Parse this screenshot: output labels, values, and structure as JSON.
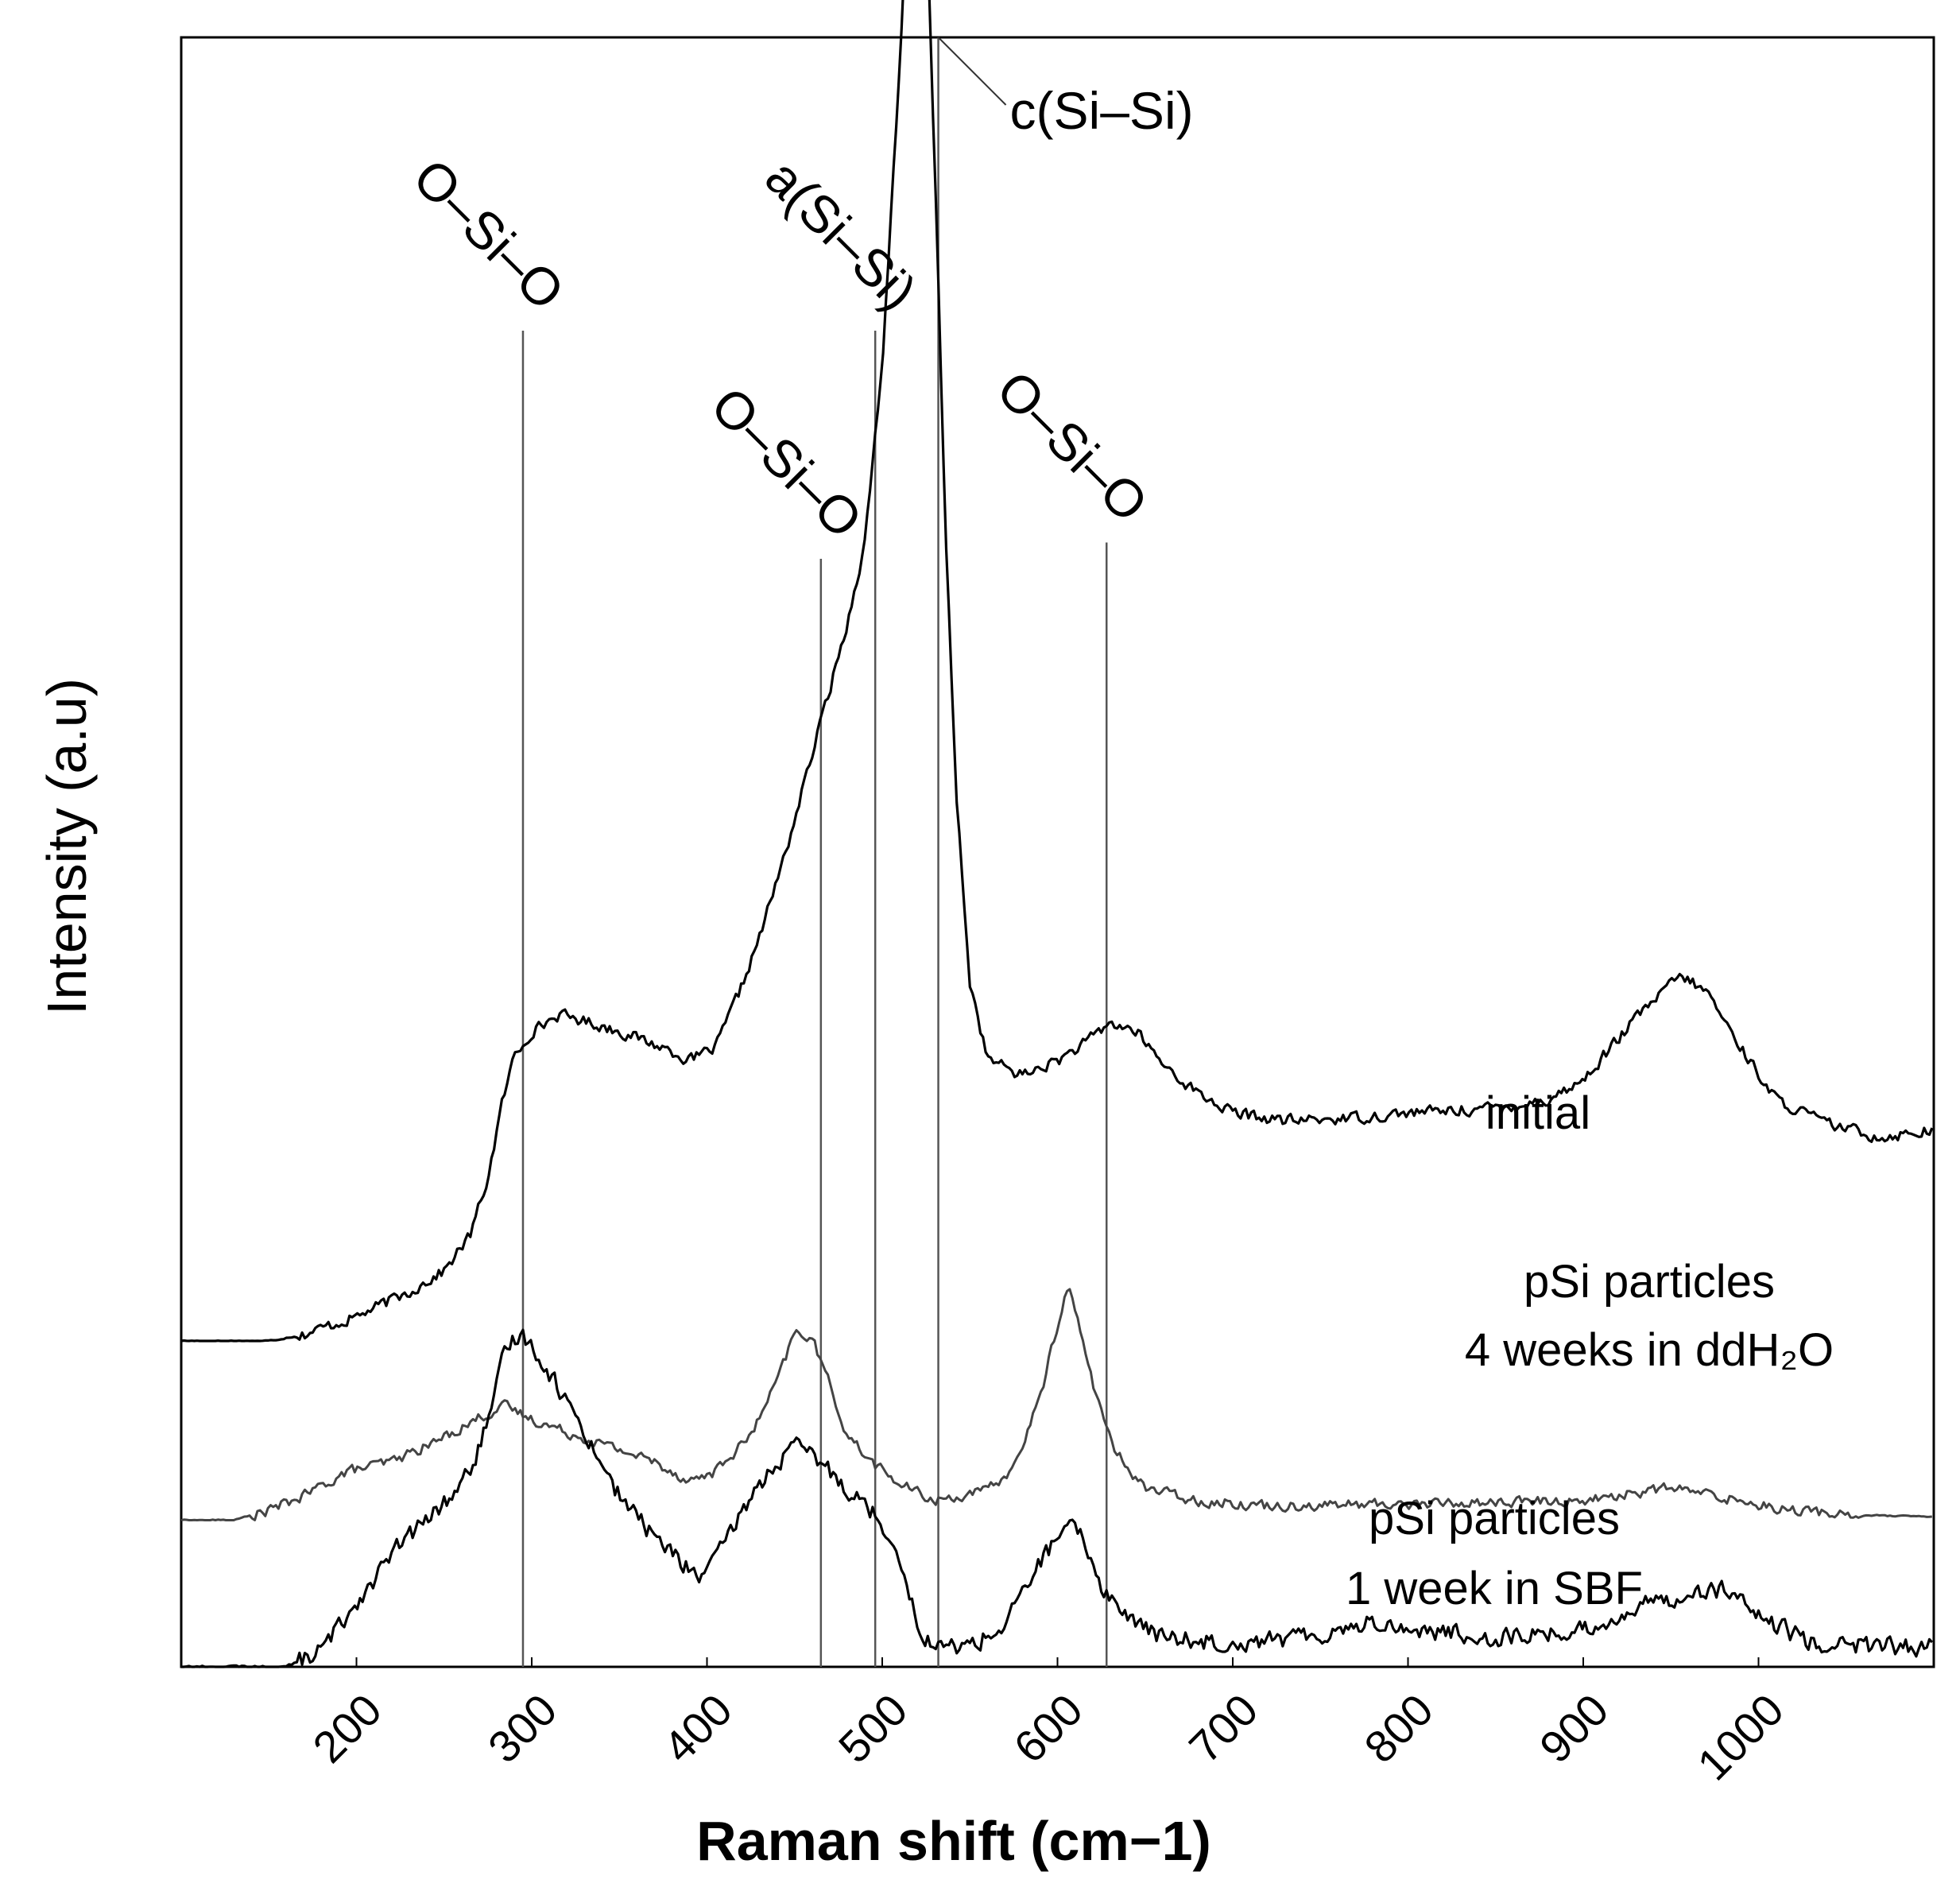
{
  "chart_data": {
    "type": "line",
    "title": "",
    "xlabel": "Raman shift (cm−1)",
    "ylabel": "Intensity (a.u)",
    "xlim": [
      100,
      1100
    ],
    "ylim": [
      0,
      100
    ],
    "xticks": [
      200,
      300,
      400,
      500,
      600,
      700,
      800,
      900,
      1000
    ],
    "grid": false,
    "series": [
      {
        "name": "initial",
        "label_lines": [
          "initial"
        ],
        "baseline": 20,
        "color": "#000000",
        "noise": 0.5,
        "points": [
          [
            100,
            0
          ],
          [
            150,
            0
          ],
          [
            170,
            0.4
          ],
          [
            200,
            1.5
          ],
          [
            230,
            3
          ],
          [
            250,
            4.3
          ],
          [
            265,
            6.5
          ],
          [
            275,
            10
          ],
          [
            283,
            14.5
          ],
          [
            290,
            17.5
          ],
          [
            300,
            19
          ],
          [
            315,
            20
          ],
          [
            325,
            19.8
          ],
          [
            350,
            19
          ],
          [
            380,
            17.8
          ],
          [
            390,
            17.2
          ],
          [
            405,
            18
          ],
          [
            420,
            21.8
          ],
          [
            430,
            24.8
          ],
          [
            445,
            30
          ],
          [
            470,
            40
          ],
          [
            480,
            44
          ],
          [
            490,
            49
          ],
          [
            500,
            60
          ],
          [
            510,
            78
          ],
          [
            515,
            90
          ],
          [
            520,
            95.5
          ],
          [
            525,
            89
          ],
          [
            530,
            72
          ],
          [
            536,
            50
          ],
          [
            542,
            34
          ],
          [
            550,
            22
          ],
          [
            560,
            17.3
          ],
          [
            580,
            16.3
          ],
          [
            600,
            17.2
          ],
          [
            615,
            18.2
          ],
          [
            630,
            19.5
          ],
          [
            645,
            19
          ],
          [
            660,
            17
          ],
          [
            680,
            15.2
          ],
          [
            700,
            14
          ],
          [
            730,
            13.5
          ],
          [
            770,
            13.7
          ],
          [
            800,
            14
          ],
          [
            850,
            14.3
          ],
          [
            880,
            14.8
          ],
          [
            900,
            16
          ],
          [
            930,
            19.8
          ],
          [
            955,
            22.4
          ],
          [
            970,
            21.5
          ],
          [
            990,
            18
          ],
          [
            1010,
            14.8
          ],
          [
            1040,
            13.3
          ],
          [
            1070,
            12.5
          ],
          [
            1100,
            13
          ]
        ]
      },
      {
        "name": "pSi particles 4 weeks in ddH2O",
        "label_lines": [
          "pSi particles",
          "4 weeks in ddH₂O"
        ],
        "baseline": 9,
        "color": "#444444",
        "noise": 0.45,
        "points": [
          [
            100,
            0
          ],
          [
            130,
            0
          ],
          [
            150,
            0.6
          ],
          [
            170,
            1.5
          ],
          [
            195,
            3
          ],
          [
            220,
            3.6
          ],
          [
            245,
            4.8
          ],
          [
            270,
            6.3
          ],
          [
            285,
            7
          ],
          [
            300,
            6.2
          ],
          [
            320,
            5.4
          ],
          [
            340,
            4.7
          ],
          [
            370,
            3.6
          ],
          [
            390,
            2.4
          ],
          [
            405,
            3
          ],
          [
            425,
            5.2
          ],
          [
            440,
            8.5
          ],
          [
            450,
            11.5
          ],
          [
            460,
            11.2
          ],
          [
            470,
            8.3
          ],
          [
            480,
            5.2
          ],
          [
            495,
            3.5
          ],
          [
            510,
            2.2
          ],
          [
            530,
            1.2
          ],
          [
            560,
            1.8
          ],
          [
            575,
            3.2
          ],
          [
            590,
            7.5
          ],
          [
            600,
            12
          ],
          [
            606,
            14.5
          ],
          [
            612,
            12
          ],
          [
            620,
            8.5
          ],
          [
            632,
            4.3
          ],
          [
            650,
            2
          ],
          [
            680,
            1.2
          ],
          [
            720,
            0.9
          ],
          [
            800,
            1
          ],
          [
            900,
            1.2
          ],
          [
            950,
            2
          ],
          [
            980,
            1.4
          ],
          [
            1020,
            0.6
          ],
          [
            1060,
            0.3
          ],
          [
            1100,
            0.2
          ]
        ]
      },
      {
        "name": "pSi particles 1 week in SBF",
        "label_lines": [
          "pSi particles",
          "1 week in SBF"
        ],
        "baseline": 0,
        "color": "#000000",
        "noise": 0.8,
        "points": [
          [
            100,
            0
          ],
          [
            160,
            0
          ],
          [
            180,
            1
          ],
          [
            200,
            4
          ],
          [
            225,
            7.5
          ],
          [
            250,
            10
          ],
          [
            265,
            12
          ],
          [
            278,
            16
          ],
          [
            285,
            19.5
          ],
          [
            293,
            20.5
          ],
          [
            300,
            19.8
          ],
          [
            315,
            17.2
          ],
          [
            330,
            14.5
          ],
          [
            350,
            10.5
          ],
          [
            370,
            8
          ],
          [
            385,
            6.5
          ],
          [
            395,
            5.5
          ],
          [
            405,
            6.5
          ],
          [
            425,
            10.5
          ],
          [
            440,
            12.5
          ],
          [
            450,
            13.5
          ],
          [
            460,
            13
          ],
          [
            475,
            11.5
          ],
          [
            495,
            9.5
          ],
          [
            510,
            7
          ],
          [
            520,
            2.5
          ],
          [
            530,
            1.2
          ],
          [
            550,
            1.3
          ],
          [
            570,
            2.5
          ],
          [
            580,
            4.5
          ],
          [
            592,
            6.8
          ],
          [
            606,
            8.6
          ],
          [
            615,
            7.8
          ],
          [
            625,
            5
          ],
          [
            640,
            3
          ],
          [
            660,
            1.8
          ],
          [
            700,
            1.5
          ],
          [
            740,
            1.8
          ],
          [
            780,
            2.8
          ],
          [
            800,
            2.3
          ],
          [
            850,
            1.8
          ],
          [
            900,
            2.2
          ],
          [
            940,
            4
          ],
          [
            965,
            4.6
          ],
          [
            980,
            4.8
          ],
          [
            1000,
            3
          ],
          [
            1030,
            1.5
          ],
          [
            1060,
            1.3
          ],
          [
            1100,
            1.2
          ]
        ]
      }
    ],
    "annotations": [
      {
        "text": "O–Si–O",
        "x": 295,
        "line_top": 82,
        "label": "O-Si-O at ~295"
      },
      {
        "text": "O–Si–O",
        "x": 465,
        "line_top": 68,
        "label": "O-Si-O at ~465"
      },
      {
        "text": "a(Si–Si)",
        "x": 496,
        "line_top": 82,
        "label": "a(Si-Si) at ~496"
      },
      {
        "text": "c(Si–Si)",
        "x": 532,
        "line_top": 100,
        "label": "c(Si-Si) at ~532"
      },
      {
        "text": "O–Si–O",
        "x": 628,
        "line_top": 69,
        "label": "O-Si-O at ~628"
      }
    ]
  }
}
